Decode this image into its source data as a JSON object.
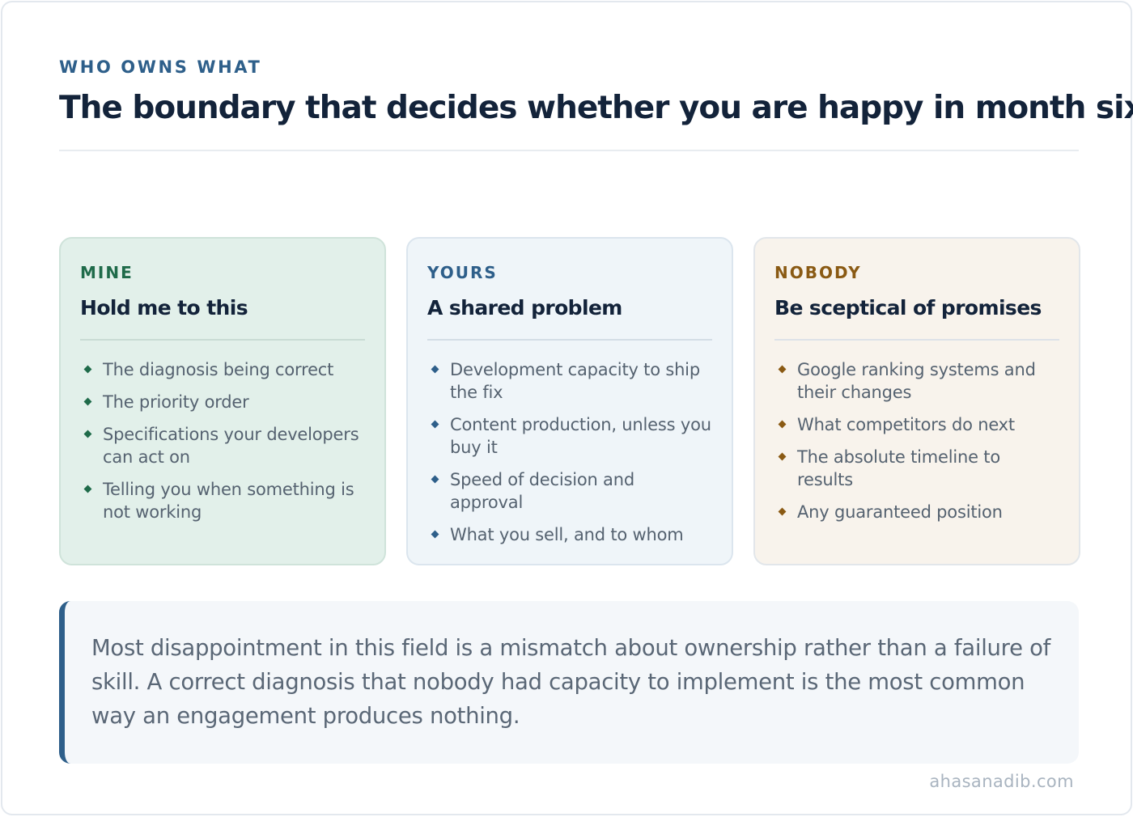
{
  "header": {
    "eyebrow": "WHO OWNS WHAT",
    "title": "The boundary that decides whether you are happy in month six"
  },
  "cards": [
    {
      "kicker": "MINE",
      "heading": "Hold me to this",
      "accent": "#1f6b4a",
      "items": [
        "The diagnosis being correct",
        "The priority order",
        "Specifications your developers can act on",
        "Telling you when something is not working"
      ]
    },
    {
      "kicker": "YOURS",
      "heading": "A shared problem",
      "accent": "#2e5f8a",
      "items": [
        "Development capacity to ship the fix",
        "Content production, unless you buy it",
        "Speed of decision and approval",
        "What you sell, and to whom"
      ]
    },
    {
      "kicker": "NOBODY",
      "heading": "Be sceptical of promises",
      "accent": "#8a5a14",
      "items": [
        "Google ranking systems and their changes",
        "What competitors do next",
        "The absolute timeline to results",
        "Any guaranteed position"
      ]
    }
  ],
  "callout": {
    "text": "Most disappointment in this field is a mismatch about ownership rather than a failure of skill. A correct diagnosis that nobody had capacity to implement is the most common way an engagement produces nothing."
  },
  "footer": {
    "site": "ahasanadib.com"
  }
}
